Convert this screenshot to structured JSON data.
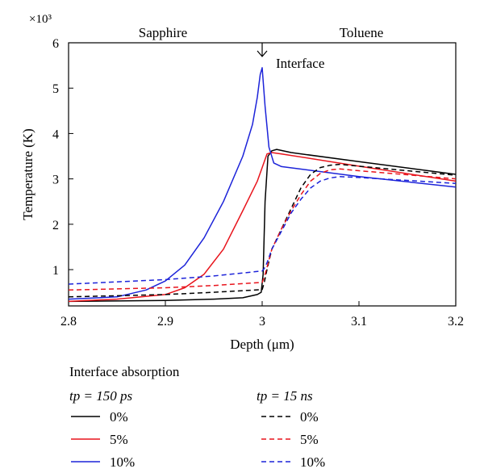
{
  "chart_data": {
    "type": "line",
    "title": "",
    "xlabel": "Depth (μm)",
    "ylabel": "Temperature (K)",
    "y_multiplier": "×10³",
    "xlim": [
      2.8,
      3.2
    ],
    "ylim": [
      0.2,
      6
    ],
    "x_ticks": [
      "2.8",
      "2.9",
      "3",
      "3.1",
      "3.2"
    ],
    "y_ticks": [
      "1",
      "2",
      "3",
      "4",
      "5",
      "6"
    ],
    "grid": false,
    "region_labels": {
      "left": "Sapphire",
      "right": "Toluene"
    },
    "annotation": "Interface",
    "legend": {
      "title": "Interface absorption",
      "placement": "bottom",
      "group_150ps": "tp = 150 ps",
      "group_15ns": "tp = 15 ns"
    },
    "series": [
      {
        "name": "0%",
        "pulse": "150 ps",
        "color": "#000000",
        "dash": false,
        "x": [
          2.8,
          2.9,
          2.95,
          2.98,
          2.995,
          2.999,
          3.001,
          3.003,
          3.006,
          3.01,
          3.015,
          3.03,
          3.1,
          3.2
        ],
        "y": [
          0.3,
          0.32,
          0.35,
          0.38,
          0.45,
          0.5,
          0.9,
          2.5,
          3.5,
          3.62,
          3.65,
          3.58,
          3.38,
          3.1
        ]
      },
      {
        "name": "5%",
        "pulse": "150 ps",
        "color": "#e8141c",
        "dash": false,
        "x": [
          2.8,
          2.85,
          2.9,
          2.92,
          2.94,
          2.96,
          2.98,
          2.995,
          3.0,
          3.005,
          3.01,
          3.02,
          3.1,
          3.2
        ],
        "y": [
          0.3,
          0.35,
          0.45,
          0.6,
          0.9,
          1.45,
          2.3,
          2.95,
          3.25,
          3.55,
          3.58,
          3.55,
          3.28,
          2.95
        ]
      },
      {
        "name": "10%",
        "pulse": "150 ps",
        "color": "#1c23d9",
        "dash": false,
        "x": [
          2.8,
          2.85,
          2.88,
          2.9,
          2.92,
          2.94,
          2.96,
          2.98,
          2.99,
          2.995,
          2.998,
          3.0,
          3.003,
          3.007,
          3.012,
          3.02,
          3.1,
          3.2
        ],
        "y": [
          0.35,
          0.4,
          0.55,
          0.75,
          1.1,
          1.7,
          2.5,
          3.5,
          4.2,
          4.8,
          5.3,
          5.45,
          4.6,
          3.7,
          3.35,
          3.27,
          3.05,
          2.82
        ]
      },
      {
        "name": "0%",
        "pulse": "15 ns",
        "color": "#000000",
        "dash": true,
        "x": [
          2.8,
          2.9,
          2.95,
          3.0,
          3.002,
          3.005,
          3.01,
          3.02,
          3.03,
          3.04,
          3.05,
          3.06,
          3.07,
          3.08,
          3.1,
          3.2
        ],
        "y": [
          0.4,
          0.45,
          0.5,
          0.56,
          0.7,
          1.0,
          1.45,
          1.9,
          2.35,
          2.8,
          3.1,
          3.25,
          3.3,
          3.32,
          3.28,
          3.08
        ]
      },
      {
        "name": "5%",
        "pulse": "15 ns",
        "color": "#e8141c",
        "dash": true,
        "x": [
          2.8,
          2.9,
          2.95,
          3.0,
          3.002,
          3.005,
          3.01,
          3.02,
          3.03,
          3.04,
          3.05,
          3.06,
          3.07,
          3.08,
          3.1,
          3.2
        ],
        "y": [
          0.55,
          0.6,
          0.65,
          0.72,
          0.82,
          1.05,
          1.45,
          1.9,
          2.3,
          2.65,
          2.95,
          3.12,
          3.2,
          3.22,
          3.18,
          3.0
        ]
      },
      {
        "name": "10%",
        "pulse": "15 ns",
        "color": "#1c23d9",
        "dash": true,
        "x": [
          2.8,
          2.9,
          2.95,
          3.0,
          3.002,
          3.005,
          3.01,
          3.02,
          3.03,
          3.04,
          3.05,
          3.06,
          3.07,
          3.08,
          3.1,
          3.2
        ],
        "y": [
          0.68,
          0.78,
          0.86,
          0.97,
          1.02,
          1.15,
          1.45,
          1.85,
          2.25,
          2.55,
          2.8,
          2.95,
          3.02,
          3.05,
          3.03,
          2.9
        ]
      }
    ]
  }
}
